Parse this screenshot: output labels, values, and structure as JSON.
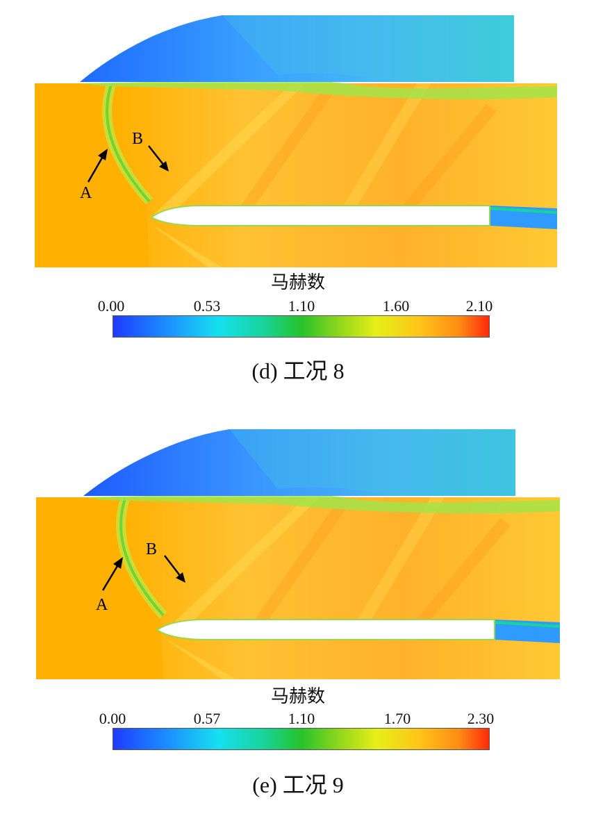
{
  "figures": [
    {
      "id": "d",
      "legend_title": "马赫数",
      "ticks": [
        "0.00",
        "0.53",
        "1.10",
        "1.60",
        "2.10"
      ],
      "caption": "(d)  工况 8",
      "annotations": [
        "A",
        "B"
      ]
    },
    {
      "id": "e",
      "legend_title": "马赫数",
      "ticks": [
        "0.00",
        "0.57",
        "1.10",
        "1.70",
        "2.30"
      ],
      "caption": "(e)  工况 9",
      "annotations": [
        "A",
        "B"
      ]
    }
  ],
  "colors": {
    "freestream": "#ffb000",
    "cavity": "#2f9bff",
    "shock": "#c7e33a"
  }
}
